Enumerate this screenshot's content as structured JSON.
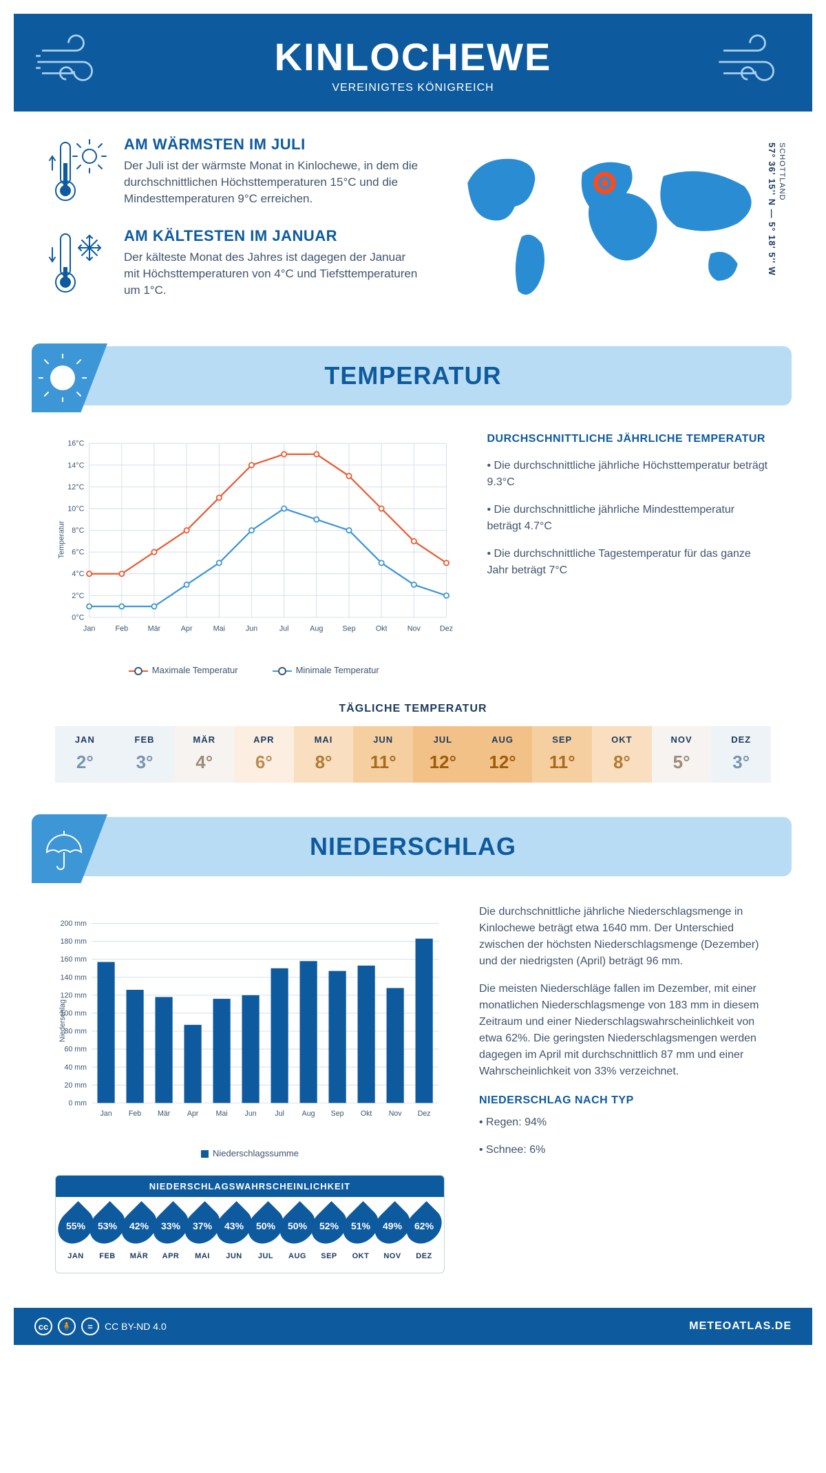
{
  "header": {
    "title": "KINLOCHEWE",
    "subtitle": "VEREINIGTES KÖNIGREICH"
  },
  "coords": {
    "line": "57° 36' 15'' N — 5° 18' 5'' W",
    "region": "SCHOTTLAND"
  },
  "warmest": {
    "title": "AM WÄRMSTEN IM JULI",
    "text": "Der Juli ist der wärmste Monat in Kinlochewe, in dem die durchschnittlichen Höchsttemperaturen 15°C und die Mindesttemperaturen 9°C erreichen."
  },
  "coldest": {
    "title": "AM KÄLTESTEN IM JANUAR",
    "text": "Der kälteste Monat des Jahres ist dagegen der Januar mit Höchsttemperaturen von 4°C und Tiefsttemperaturen um 1°C."
  },
  "section_temp": "TEMPERATUR",
  "section_precip": "NIEDERSCHLAG",
  "temp_chart": {
    "type": "line",
    "y_label": "Temperatur",
    "y_min": 0,
    "y_max": 16,
    "y_step": 2,
    "y_suffix": "°C",
    "months": [
      "Jan",
      "Feb",
      "Mär",
      "Apr",
      "Mai",
      "Jun",
      "Jul",
      "Aug",
      "Sep",
      "Okt",
      "Nov",
      "Dez"
    ],
    "series": [
      {
        "name": "Maximale Temperatur",
        "color": "#e95b2f",
        "values": [
          4,
          4,
          6,
          8,
          11,
          14,
          15,
          15,
          13,
          10,
          7,
          5
        ]
      },
      {
        "name": "Minimale Temperatur",
        "color": "#3d96d6",
        "values": [
          1,
          1,
          1,
          3,
          5,
          8,
          10,
          9,
          8,
          5,
          3,
          2
        ]
      }
    ],
    "grid_color": "#d0dce8",
    "marker_radius": 4,
    "line_width": 2.5
  },
  "temp_info": {
    "heading": "DURCHSCHNITTLICHE JÄHRLICHE TEMPERATUR",
    "bullets": [
      "• Die durchschnittliche jährliche Höchsttemperatur beträgt 9.3°C",
      "• Die durchschnittliche jährliche Mindesttemperatur beträgt 4.7°C",
      "• Die durchschnittliche Tagestemperatur für das ganze Jahr beträgt 7°C"
    ]
  },
  "daily_temp": {
    "heading": "TÄGLICHE TEMPERATUR",
    "months": [
      "JAN",
      "FEB",
      "MÄR",
      "APR",
      "MAI",
      "JUN",
      "JUL",
      "AUG",
      "SEP",
      "OKT",
      "NOV",
      "DEZ"
    ],
    "values": [
      "2°",
      "3°",
      "4°",
      "6°",
      "8°",
      "11°",
      "12°",
      "12°",
      "11°",
      "8°",
      "5°",
      "3°"
    ],
    "bg_colors": [
      "#eef3f8",
      "#eef3f8",
      "#f7f3f0",
      "#fcefe2",
      "#f9dfbf",
      "#f6cfa0",
      "#f2c187",
      "#f2c187",
      "#f6cfa0",
      "#f9dfbf",
      "#f7f3f0",
      "#eef3f8"
    ],
    "text_colors": [
      "#7a94af",
      "#7a94af",
      "#9c8c78",
      "#b98d53",
      "#b07b36",
      "#a86a1c",
      "#9e5c0a",
      "#9e5c0a",
      "#a86a1c",
      "#b07b36",
      "#9c8c78",
      "#7a94af"
    ]
  },
  "precip_chart": {
    "type": "bar",
    "y_label": "Niederschlag",
    "y_min": 0,
    "y_max": 200,
    "y_step": 20,
    "y_suffix": " mm",
    "months": [
      "Jan",
      "Feb",
      "Mär",
      "Apr",
      "Mai",
      "Jun",
      "Jul",
      "Aug",
      "Sep",
      "Okt",
      "Nov",
      "Dez"
    ],
    "values": [
      157,
      126,
      118,
      87,
      116,
      120,
      150,
      158,
      147,
      153,
      128,
      183
    ],
    "bar_color": "#0d5a9e",
    "bar_width": 0.6,
    "legend": "Niederschlagssumme"
  },
  "precip_text": {
    "p1": "Die durchschnittliche jährliche Niederschlagsmenge in Kinlochewe beträgt etwa 1640 mm. Der Unterschied zwischen der höchsten Niederschlagsmenge (Dezember) und der niedrigsten (April) beträgt 96 mm.",
    "p2": "Die meisten Niederschläge fallen im Dezember, mit einer monatlichen Niederschlagsmenge von 183 mm in diesem Zeitraum und einer Niederschlagswahrscheinlichkeit von etwa 62%. Die geringsten Niederschlagsmengen werden dagegen im April mit durchschnittlich 87 mm und einer Wahrscheinlichkeit von 33% verzeichnet.",
    "type_heading": "NIEDERSCHLAG NACH TYP",
    "type_bullets": [
      "• Regen: 94%",
      "• Schnee: 6%"
    ]
  },
  "prob": {
    "heading": "NIEDERSCHLAGSWAHRSCHEINLICHKEIT",
    "months": [
      "JAN",
      "FEB",
      "MÄR",
      "APR",
      "MAI",
      "JUN",
      "JUL",
      "AUG",
      "SEP",
      "OKT",
      "NOV",
      "DEZ"
    ],
    "values": [
      "55%",
      "53%",
      "42%",
      "33%",
      "37%",
      "43%",
      "50%",
      "50%",
      "52%",
      "51%",
      "49%",
      "62%"
    ]
  },
  "footer": {
    "license": "CC BY-ND 4.0",
    "brand": "METEOATLAS.DE"
  }
}
